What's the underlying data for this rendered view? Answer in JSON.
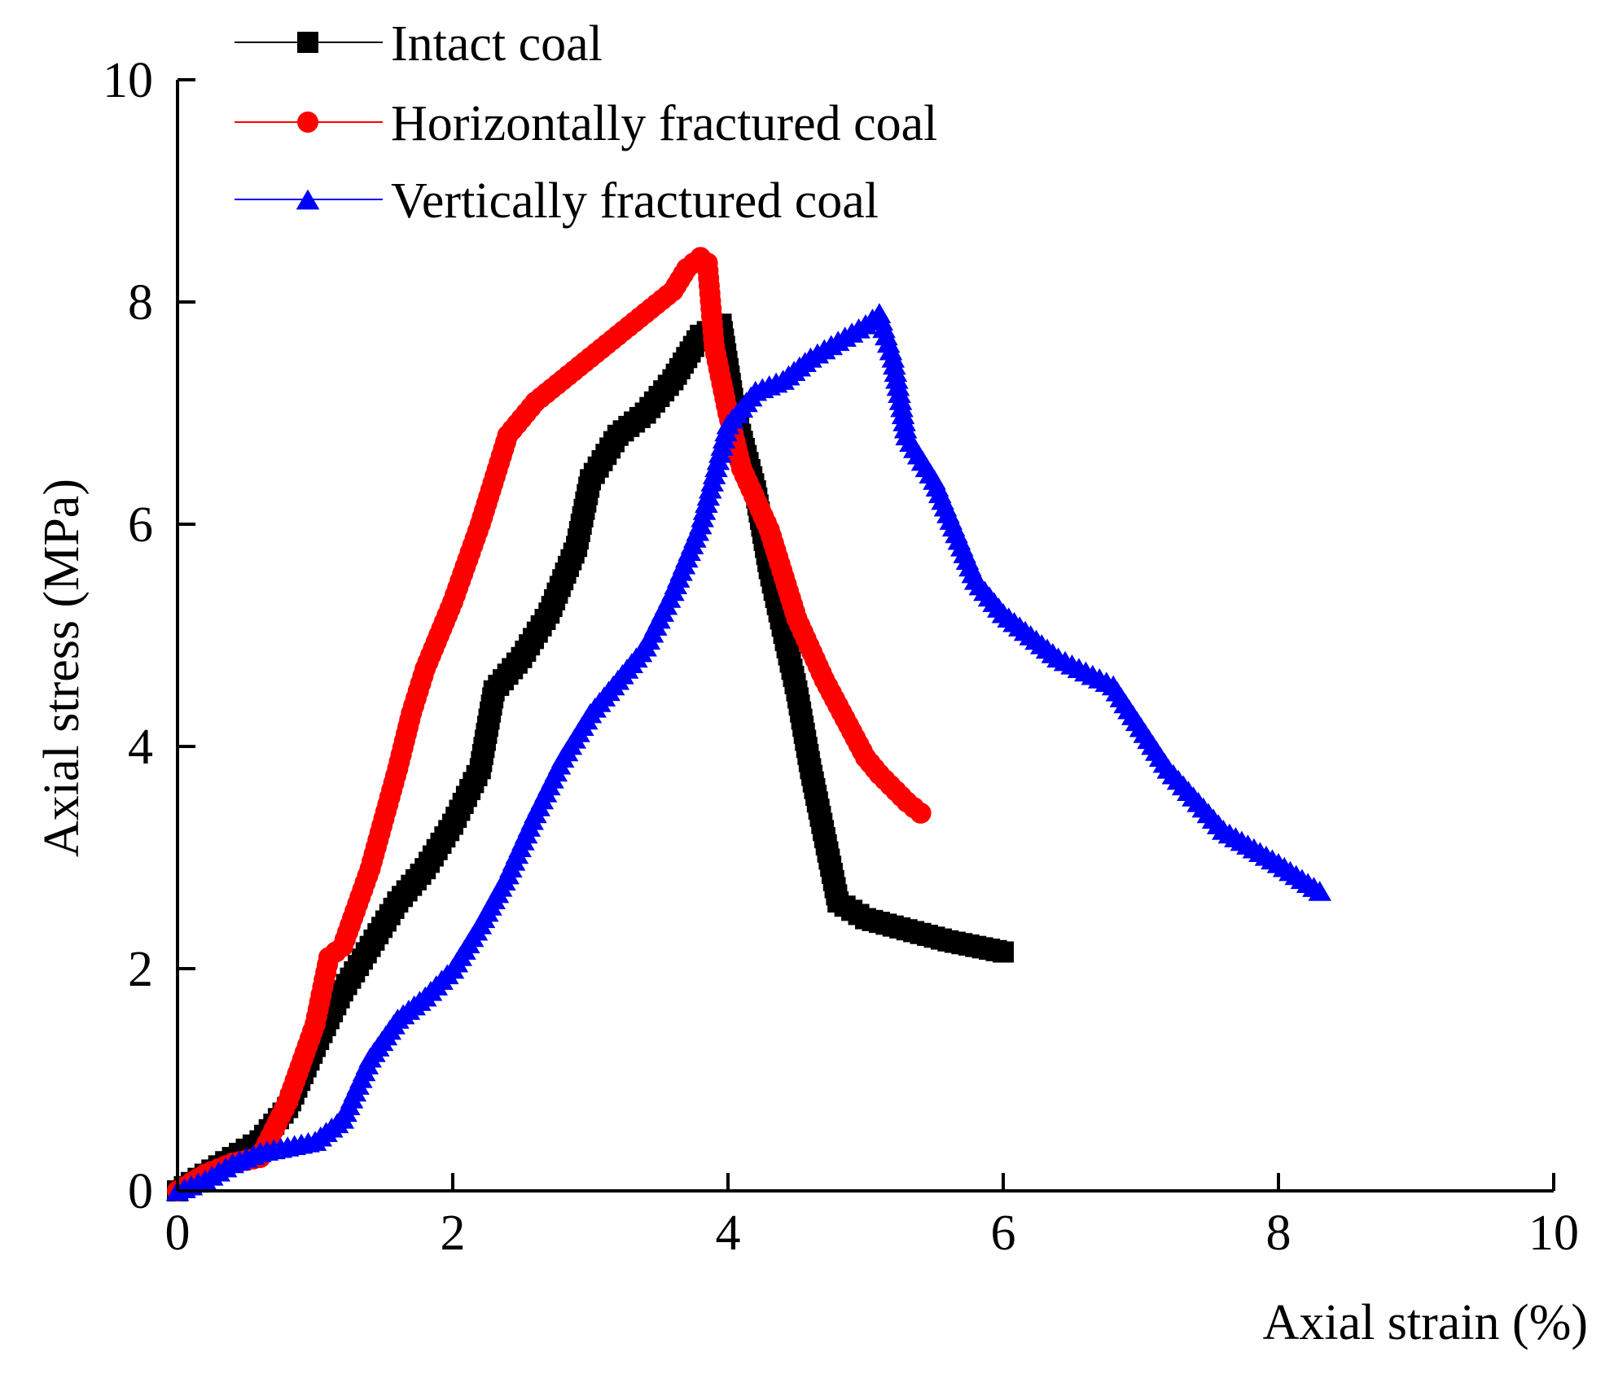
{
  "chart_data": {
    "type": "line",
    "title": "",
    "xlabel": "Axial strain (%)",
    "ylabel": "Axial stress (MPa)",
    "xlim": [
      0,
      10
    ],
    "ylim": [
      0,
      10
    ],
    "xticks": [
      0,
      2,
      4,
      6,
      8,
      10
    ],
    "yticks": [
      0,
      2,
      4,
      6,
      8,
      10
    ],
    "grid": false,
    "legend_position": "top-left",
    "series": [
      {
        "name": "Intact coal",
        "color": "#000000",
        "marker": "square",
        "points": [
          [
            0,
            0
          ],
          [
            0.2,
            0.15
          ],
          [
            0.4,
            0.3
          ],
          [
            0.6,
            0.45
          ],
          [
            0.8,
            0.75
          ],
          [
            1.0,
            1.3
          ],
          [
            1.2,
            1.8
          ],
          [
            1.4,
            2.2
          ],
          [
            1.6,
            2.6
          ],
          [
            1.8,
            2.9
          ],
          [
            2.0,
            3.3
          ],
          [
            2.2,
            3.8
          ],
          [
            2.3,
            4.5
          ],
          [
            2.5,
            4.8
          ],
          [
            2.7,
            5.2
          ],
          [
            2.9,
            5.8
          ],
          [
            3.0,
            6.4
          ],
          [
            3.2,
            6.8
          ],
          [
            3.4,
            7.0
          ],
          [
            3.6,
            7.3
          ],
          [
            3.7,
            7.5
          ],
          [
            3.8,
            7.7
          ],
          [
            3.95,
            7.8
          ],
          [
            4.05,
            7.0
          ],
          [
            4.2,
            6.3
          ],
          [
            4.3,
            5.6
          ],
          [
            4.5,
            4.5
          ],
          [
            4.6,
            3.8
          ],
          [
            4.65,
            3.5
          ],
          [
            4.8,
            2.6
          ],
          [
            5.0,
            2.45
          ],
          [
            5.3,
            2.35
          ],
          [
            5.6,
            2.25
          ],
          [
            6.0,
            2.15
          ]
        ]
      },
      {
        "name": "Horizontally fractured coal",
        "color": "#ff0000",
        "marker": "circle",
        "points": [
          [
            0,
            0
          ],
          [
            0.2,
            0.15
          ],
          [
            0.4,
            0.25
          ],
          [
            0.6,
            0.3
          ],
          [
            0.8,
            0.8
          ],
          [
            1.0,
            1.5
          ],
          [
            1.1,
            2.1
          ],
          [
            1.2,
            2.2
          ],
          [
            1.4,
            2.9
          ],
          [
            1.6,
            3.8
          ],
          [
            1.7,
            4.3
          ],
          [
            1.8,
            4.7
          ],
          [
            2.0,
            5.3
          ],
          [
            2.2,
            6.0
          ],
          [
            2.4,
            6.8
          ],
          [
            2.6,
            7.1
          ],
          [
            2.8,
            7.3
          ],
          [
            3.0,
            7.5
          ],
          [
            3.2,
            7.7
          ],
          [
            3.4,
            7.9
          ],
          [
            3.6,
            8.1
          ],
          [
            3.7,
            8.3
          ],
          [
            3.8,
            8.4
          ],
          [
            3.85,
            8.35
          ],
          [
            3.9,
            7.6
          ],
          [
            4.0,
            7.0
          ],
          [
            4.1,
            6.5
          ],
          [
            4.3,
            5.95
          ],
          [
            4.5,
            5.15
          ],
          [
            4.7,
            4.6
          ],
          [
            5.0,
            3.9
          ],
          [
            5.1,
            3.75
          ],
          [
            5.3,
            3.5
          ],
          [
            5.4,
            3.4
          ]
        ]
      },
      {
        "name": "Vertically fractured coal",
        "color": "#0000ff",
        "marker": "triangle",
        "points": [
          [
            0,
            0
          ],
          [
            0.2,
            0.1
          ],
          [
            0.4,
            0.25
          ],
          [
            0.6,
            0.35
          ],
          [
            0.8,
            0.4
          ],
          [
            1.0,
            0.45
          ],
          [
            1.2,
            0.65
          ],
          [
            1.4,
            1.2
          ],
          [
            1.6,
            1.55
          ],
          [
            1.8,
            1.75
          ],
          [
            2.0,
            2.0
          ],
          [
            2.2,
            2.4
          ],
          [
            2.4,
            2.85
          ],
          [
            2.6,
            3.4
          ],
          [
            2.8,
            3.9
          ],
          [
            3.0,
            4.3
          ],
          [
            3.2,
            4.6
          ],
          [
            3.4,
            4.9
          ],
          [
            3.6,
            5.4
          ],
          [
            3.8,
            6.0
          ],
          [
            4.0,
            6.9
          ],
          [
            4.2,
            7.2
          ],
          [
            4.4,
            7.3
          ],
          [
            4.6,
            7.5
          ],
          [
            4.8,
            7.65
          ],
          [
            5.0,
            7.8
          ],
          [
            5.1,
            7.9
          ],
          [
            5.2,
            7.5
          ],
          [
            5.3,
            6.8
          ],
          [
            5.5,
            6.4
          ],
          [
            5.8,
            5.5
          ],
          [
            6.0,
            5.2
          ],
          [
            6.4,
            4.8
          ],
          [
            6.8,
            4.55
          ],
          [
            7.2,
            3.8
          ],
          [
            7.6,
            3.25
          ],
          [
            8.0,
            2.95
          ],
          [
            8.3,
            2.7
          ]
        ]
      }
    ]
  }
}
